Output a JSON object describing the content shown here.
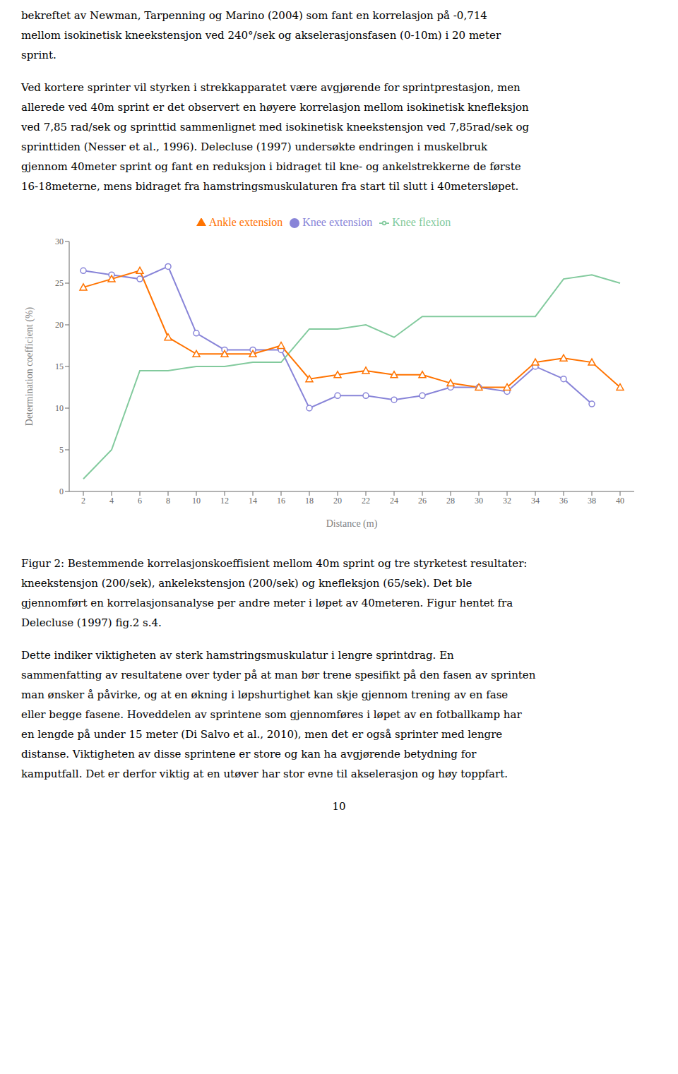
{
  "chart_data": {
    "type": "line",
    "x": [
      2,
      4,
      6,
      8,
      10,
      12,
      14,
      16,
      18,
      20,
      22,
      24,
      26,
      28,
      30,
      32,
      34,
      36,
      38,
      40
    ],
    "series": [
      {
        "name": "Knee extension",
        "color": "#8884d8",
        "marker": "circle",
        "line_style": "solid",
        "values": [
          26.5,
          26.0,
          25.5,
          27.0,
          19.0,
          17.0,
          17.0,
          17.0,
          10.0,
          11.5,
          11.5,
          11.0,
          11.5,
          12.5,
          12.5,
          12.0,
          15.0,
          13.5,
          10.5,
          null
        ]
      },
      {
        "name": "Knee flexion",
        "color": "#82ca9d",
        "line_style": "solid",
        "values": [
          1.5,
          5.0,
          14.5,
          14.5,
          15.0,
          15.0,
          15.5,
          15.5,
          19.5,
          19.5,
          20.0,
          18.5,
          21.0,
          21.0,
          21.0,
          21.0,
          21.0,
          25.5,
          26.0,
          25.0
        ]
      },
      {
        "name": "Ankle extension",
        "color": "#ff7300",
        "marker": "triangle",
        "line_style": "solid",
        "values": [
          24.5,
          25.5,
          26.5,
          18.5,
          16.5,
          16.5,
          16.5,
          17.5,
          13.5,
          14.0,
          14.5,
          14.0,
          14.0,
          13.0,
          12.5,
          12.5,
          15.5,
          16.0,
          15.5,
          12.5
        ]
      }
    ],
    "xlabel": "Distance (m)",
    "ylabel": "Determination coefficient (%)",
    "xlim": [
      1,
      41
    ],
    "ylim": [
      0,
      30
    ],
    "xticks": [
      2,
      4,
      6,
      8,
      10,
      12,
      14,
      16,
      18,
      20,
      22,
      24,
      26,
      28,
      30,
      32,
      34,
      36,
      38,
      40
    ],
    "yticks": [
      0,
      5,
      10,
      15,
      20,
      25,
      30
    ],
    "grid": false,
    "legend": "top",
    "annotations": [
      [
        "bekreftet av Newman, Tarpenning og Marino (2004) som fant en korrelasjon på -0,714",
        "mellom isokinetisk kneekstensjon ved 240°/sek og akselerasjonsfasen (0-10m) i 20 meter",
        "sprint."
      ],
      [
        "Ved kortere sprinter vil styrken i strekkapparatet være avgjørende for sprintprestasjon, men",
        "allerede ved 40m sprint er det observert en høyere korrelasjon mellom isokinetisk knefleksjon",
        "ved 7,85 rad/sek og sprinttid sammenlignet med isokinetisk kneekstensjon ved 7,85rad/sek og",
        "sprinttiden (Nesser et al., 1996).  Delecluse (1997) undersøkte endringen i muskelbruk",
        "gjennom 40meter sprint og fant en reduksjon i bidraget til kne- og ankelstrekkerne de første",
        "16-18meterne, mens bidraget fra hamstringsmuskulaturen fra start til slutt i 40metersløpet."
      ],
      [
        "Figur 2: Bestemmende korrelasjonskoeffisient mellom 40m sprint og tre styrketest resultater:",
        "kneekstensjon (200/sek), ankelekstensjon (200/sek) og knefleksjon (65/sek). Det ble",
        "gjennomført en korrelasjonsanalyse per andre meter i løpet av 40meteren. Figur hentet fra",
        "Delecluse (1997) fig.2 s.4."
      ],
      [
        "Dette indiker viktigheten av sterk hamstringsmuskulatur i lengre sprintdrag. En",
        "sammenfatting av resultatene over tyder på at man bør trene spesifikt på den fasen av sprinten",
        "man ønsker å påvirke, og at en økning i løpshurtighet kan skje gjennom trening av en fase",
        "eller begge fasene. Hoveddelen av sprintene som gjennomføres i løpet av en fotballkamp har",
        "en lengde på under 15 meter (Di Salvo et al., 2010), men det er også sprinter med lengre",
        "distanse. Viktigheten av disse sprintene er store og kan ha avgjørende betydning for",
        "kamputfall. Det er derfor viktig at en utøver har stor evne til akselerasjon og høy toppfart."
      ],
      [
        "10"
      ]
    ]
  }
}
